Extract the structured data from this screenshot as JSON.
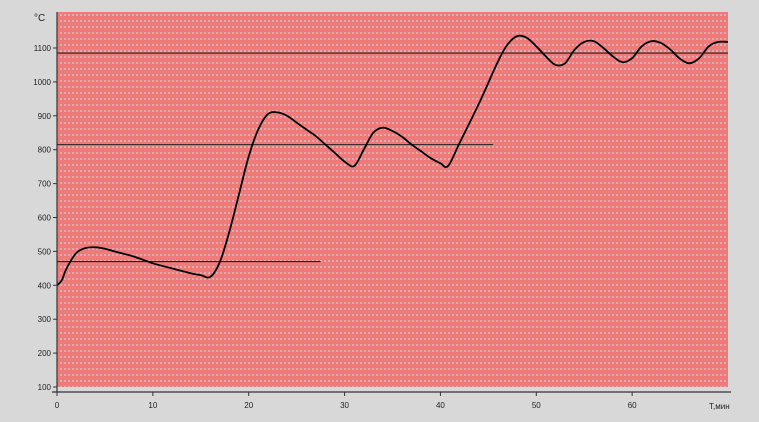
{
  "chart_data": {
    "type": "line",
    "title": "",
    "xlabel": "T,мин",
    "ylabel": "°C",
    "xlim": [
      0,
      70
    ],
    "ylim": [
      100,
      1200
    ],
    "x_ticks": [
      "0",
      "10",
      "20",
      "30",
      "40",
      "50",
      "60"
    ],
    "y_ticks": [
      "100",
      "200",
      "300",
      "400",
      "500",
      "600",
      "700",
      "800",
      "900",
      "1000",
      "1100"
    ],
    "grid": true,
    "colors": {
      "plot_bg": "#f07a7a",
      "grid_line": "#c8c8c8",
      "frame_bg": "#d8d8d8",
      "curve": "#000000"
    },
    "reference_lines": [
      {
        "y": 470,
        "x_from": 0,
        "x_to": 27.5
      },
      {
        "y": 815,
        "x_from": 0,
        "x_to": 45.5
      },
      {
        "y": 1085,
        "x_from": 0,
        "x_to": 70
      }
    ],
    "series": [
      {
        "x": [
          0,
          0.5,
          1,
          2,
          3,
          4,
          5,
          6,
          8,
          10,
          12,
          14,
          15,
          16,
          17,
          18,
          19,
          20,
          21,
          22,
          23,
          24,
          25,
          26,
          27,
          28,
          29,
          30,
          31,
          32,
          33,
          34,
          35,
          36,
          37,
          38,
          39,
          40,
          40.8,
          42,
          44,
          46,
          47,
          48,
          49,
          50,
          51,
          52,
          53,
          54,
          55,
          56,
          57,
          58,
          59,
          60,
          61,
          62,
          63,
          64,
          65,
          66,
          67,
          68,
          69,
          70
        ],
        "y": [
          400,
          415,
          450,
          495,
          510,
          512,
          508,
          500,
          485,
          465,
          450,
          435,
          430,
          425,
          470,
          560,
          670,
          780,
          860,
          905,
          910,
          900,
          880,
          860,
          840,
          815,
          790,
          765,
          752,
          800,
          850,
          865,
          855,
          838,
          815,
          795,
          775,
          760,
          752,
          820,
          935,
          1060,
          1110,
          1135,
          1130,
          1105,
          1075,
          1050,
          1055,
          1095,
          1118,
          1120,
          1100,
          1075,
          1058,
          1070,
          1105,
          1120,
          1115,
          1095,
          1068,
          1055,
          1070,
          1105,
          1118,
          1118
        ]
      }
    ]
  }
}
